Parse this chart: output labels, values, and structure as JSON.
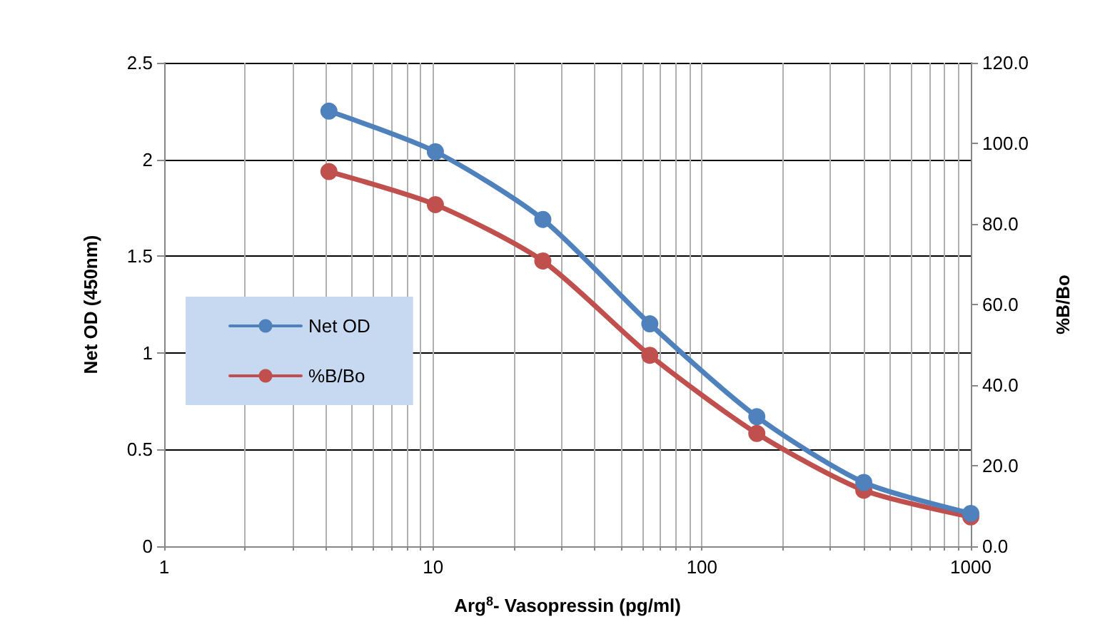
{
  "chart_data": {
    "type": "line",
    "xlabel": "Arg$^{8}$- Vasopressin (pg/ml)",
    "ylabel": "Net OD (450nm)",
    "y2label": "%B/Bo",
    "x": [
      4.1,
      10.2,
      25.6,
      64,
      160,
      400,
      1000
    ],
    "series": [
      {
        "name": "Net OD",
        "color": "#4f81bd",
        "values": [
          2.25,
          2.04,
          1.69,
          1.15,
          0.67,
          0.33,
          0.17
        ]
      },
      {
        "name": "%B/Bo",
        "color": "#c0504d",
        "axis": "y2",
        "values": [
          93.0,
          84.8,
          70.8,
          47.4,
          28.0,
          13.9,
          7.3
        ]
      }
    ],
    "log": "x",
    "xlim": [
      1,
      1000
    ],
    "xticks": [
      1,
      10,
      100,
      1000
    ],
    "ylim": [
      0,
      2.5
    ],
    "yticks": [
      0,
      0.5,
      1,
      1.5,
      2,
      2.5
    ],
    "y2lim": [
      0,
      120
    ],
    "y2ticks": [
      {
        "value": 0,
        "label": "0.0"
      },
      {
        "value": 20,
        "label": "20.0"
      },
      {
        "value": 40,
        "label": "40.0"
      },
      {
        "value": 60,
        "label": "60.0"
      },
      {
        "value": 80,
        "label": "80.0"
      },
      {
        "value": 100,
        "label": "100.0"
      },
      {
        "value": 120,
        "label": "120.0"
      }
    ],
    "grid": true,
    "legend": "left",
    "marker": "circle",
    "line_style": "solid"
  }
}
